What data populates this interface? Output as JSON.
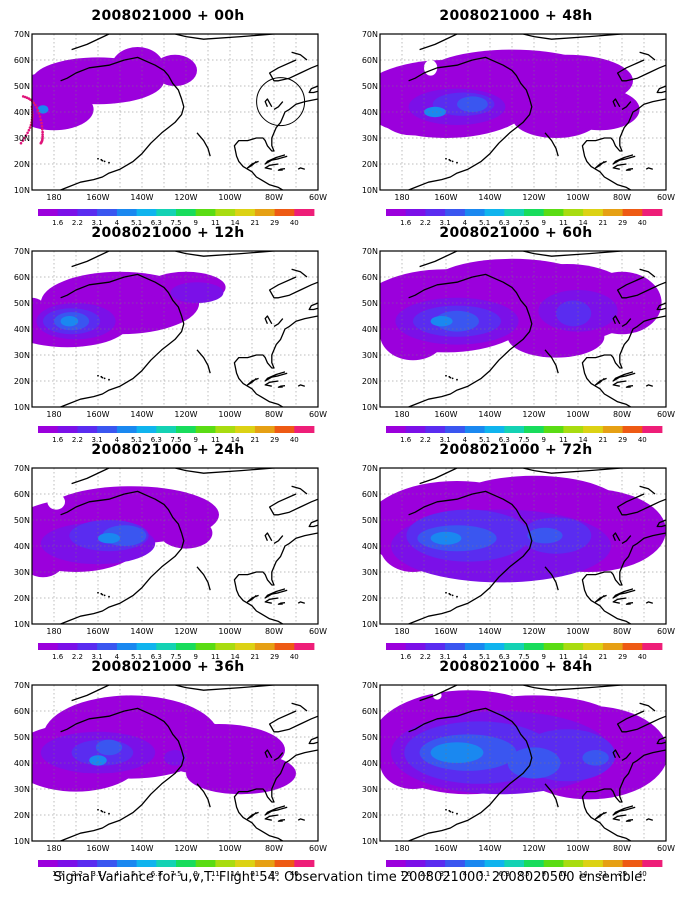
{
  "axes": {
    "lat_labels": [
      "10N",
      "20N",
      "30N",
      "40N",
      "50N",
      "60N",
      "70N"
    ],
    "lon_labels": [
      "180",
      "160W",
      "140W",
      "120W",
      "100W",
      "80W",
      "60W"
    ]
  },
  "colorbar": {
    "labels": [
      "1.6",
      "2.2",
      "3.1",
      "4",
      "5.1",
      "6.3",
      "7.5",
      "9",
      "11",
      "14",
      "21",
      "29",
      "40"
    ],
    "colors": [
      "#9b00dc",
      "#7b10e8",
      "#5a2cf0",
      "#3a56f0",
      "#1a88f0",
      "#10b4ee",
      "#14d2b4",
      "#18dc5c",
      "#5adc14",
      "#a8dc10",
      "#dcd214",
      "#e6a014",
      "#ee5a14",
      "#ee1e78"
    ]
  },
  "panels": [
    {
      "title": "2008021000 + 00h"
    },
    {
      "title": "2008021000 + 48h"
    },
    {
      "title": "2008021000 + 12h"
    },
    {
      "title": "2008021000 + 60h"
    },
    {
      "title": "2008021000 + 24h"
    },
    {
      "title": "2008021000 + 72h"
    },
    {
      "title": "2008021000 + 36h"
    },
    {
      "title": "2008021000 + 84h"
    }
  ],
  "footer": "Signal Variance for u,v,T. Flight 54. Observation time 2008021000. 2008020500 ensemble."
}
